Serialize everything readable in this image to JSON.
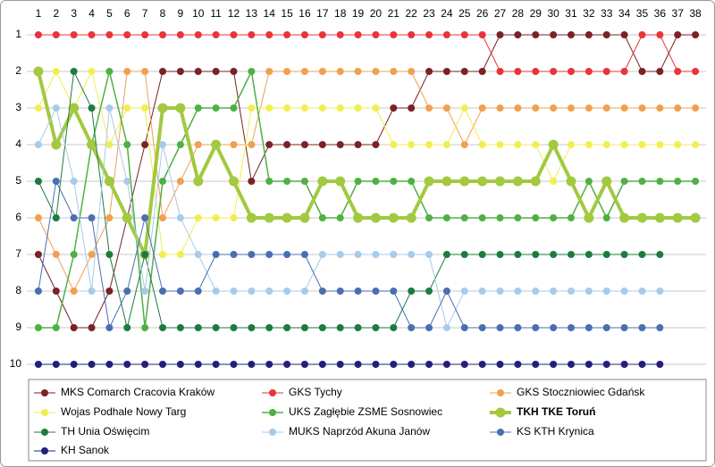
{
  "chart_data": {
    "type": "line",
    "x": [
      1,
      2,
      3,
      4,
      5,
      6,
      7,
      8,
      9,
      10,
      11,
      12,
      13,
      14,
      15,
      16,
      17,
      18,
      19,
      20,
      21,
      22,
      23,
      24,
      25,
      26,
      27,
      28,
      29,
      30,
      31,
      32,
      33,
      34,
      35,
      36,
      37,
      38
    ],
    "xlim": [
      0.5,
      38.5
    ],
    "ylim": [
      10.5,
      0.5
    ],
    "yticks": [
      1,
      2,
      3,
      4,
      5,
      6,
      7,
      8,
      9,
      10
    ],
    "grid": true,
    "legend": "bottom",
    "series": [
      {
        "name": "MKS Comarch Cracovia Kraków",
        "color": "#7a2226",
        "width": 1,
        "values": [
          7,
          8,
          9,
          9,
          8,
          6,
          4,
          2,
          2,
          2,
          2,
          2,
          5,
          4,
          4,
          4,
          4,
          4,
          4,
          4,
          3,
          3,
          2,
          2,
          2,
          2,
          1,
          1,
          1,
          1,
          1,
          1,
          1,
          1,
          2,
          2,
          1,
          1
        ]
      },
      {
        "name": "GKS Tychy",
        "color": "#e8343a",
        "width": 1,
        "values": [
          1,
          1,
          1,
          1,
          1,
          1,
          1,
          1,
          1,
          1,
          1,
          1,
          1,
          1,
          1,
          1,
          1,
          1,
          1,
          1,
          1,
          1,
          1,
          1,
          1,
          1,
          2,
          2,
          2,
          2,
          2,
          2,
          2,
          2,
          1,
          1,
          2,
          2
        ]
      },
      {
        "name": "GKS Stoczniowiec Gdańsk",
        "color": "#f0a050",
        "width": 1,
        "values": [
          6,
          7,
          8,
          7,
          6,
          2,
          2,
          6,
          5,
          4,
          4,
          4,
          4,
          2,
          2,
          2,
          2,
          2,
          2,
          2,
          2,
          2,
          3,
          3,
          4,
          3,
          3,
          3,
          3,
          3,
          3,
          3,
          3,
          3,
          3,
          3,
          3,
          3
        ]
      },
      {
        "name": "Wojas Podhale Nowy Targ",
        "color": "#f2ee50",
        "width": 1,
        "values": [
          3,
          2,
          3,
          2,
          4,
          3,
          3,
          7,
          7,
          6,
          6,
          6,
          3,
          3,
          3,
          3,
          3,
          3,
          3,
          3,
          4,
          4,
          4,
          4,
          3,
          4,
          4,
          4,
          4,
          5,
          4,
          4,
          4,
          4,
          4,
          4,
          4,
          4
        ]
      },
      {
        "name": "UKS Zagłębie ZSME Sosnowiec",
        "color": "#4fb043",
        "width": 1.5,
        "values": [
          9,
          9,
          7,
          4,
          2,
          4,
          9,
          5,
          4,
          3,
          3,
          3,
          2,
          5,
          5,
          5,
          6,
          6,
          5,
          5,
          5,
          5,
          6,
          6,
          6,
          6,
          6,
          6,
          6,
          6,
          6,
          5,
          6,
          5,
          5,
          5,
          5,
          5
        ]
      },
      {
        "name": "TKH TKE Toruń",
        "color": "#a2c940",
        "width": 4,
        "values": [
          2,
          4,
          3,
          4,
          5,
          6,
          7,
          3,
          3,
          5,
          4,
          5,
          6,
          6,
          6,
          6,
          5,
          5,
          6,
          6,
          6,
          6,
          5,
          5,
          5,
          5,
          5,
          5,
          5,
          4,
          5,
          6,
          5,
          6,
          6,
          6,
          6,
          6
        ]
      },
      {
        "name": "TH Unia Oświęcim",
        "color": "#1f7a3e",
        "width": 1,
        "values": [
          5,
          6,
          2,
          3,
          7,
          9,
          7,
          9,
          9,
          9,
          9,
          9,
          9,
          9,
          9,
          9,
          9,
          9,
          9,
          9,
          9,
          8,
          8,
          7,
          7,
          7,
          7,
          7,
          7,
          7,
          7,
          7,
          7,
          7,
          7,
          7,
          null,
          null
        ]
      },
      {
        "name": "MUKS Naprzód Akuna Janów",
        "color": "#a8cbe8",
        "width": 1,
        "values": [
          4,
          3,
          5,
          8,
          3,
          5,
          8,
          4,
          6,
          7,
          8,
          8,
          8,
          8,
          8,
          8,
          7,
          7,
          7,
          7,
          7,
          7,
          7,
          9,
          8,
          8,
          8,
          8,
          8,
          8,
          8,
          8,
          8,
          8,
          8,
          8,
          null,
          null
        ]
      },
      {
        "name": "KS KTH Krynica",
        "color": "#4a6fb0",
        "width": 1,
        "values": [
          8,
          5,
          6,
          6,
          9,
          8,
          6,
          8,
          8,
          8,
          7,
          7,
          7,
          7,
          7,
          7,
          8,
          8,
          8,
          8,
          8,
          9,
          9,
          8,
          9,
          9,
          9,
          9,
          9,
          9,
          9,
          9,
          9,
          9,
          9,
          9,
          null,
          null
        ]
      },
      {
        "name": "KH Sanok",
        "color": "#22207a",
        "width": 1,
        "values": [
          10,
          10,
          10,
          10,
          10,
          10,
          10,
          10,
          10,
          10,
          10,
          10,
          10,
          10,
          10,
          10,
          10,
          10,
          10,
          10,
          10,
          10,
          10,
          10,
          10,
          10,
          10,
          10,
          10,
          10,
          10,
          10,
          10,
          10,
          10,
          10,
          null,
          null
        ]
      }
    ]
  }
}
